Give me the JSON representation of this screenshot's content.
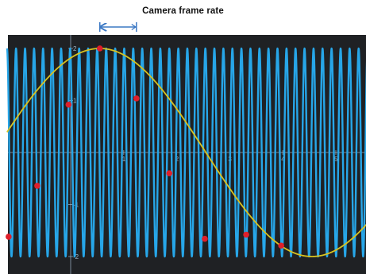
{
  "title": "Camera frame rate",
  "colors": {
    "background": "#1f2124",
    "fast_wave": "#27a6e8",
    "slow_wave": "#d8c21f",
    "sample_points": "#e01f2a",
    "bracket": "#3b78c4",
    "axis": "#9fb6c8"
  },
  "y_ticks": [
    "2",
    "1",
    "-1",
    "-2"
  ],
  "x_ticks": [
    "1",
    "2",
    "3",
    "4",
    "5"
  ],
  "chart_data": {
    "type": "line",
    "title": "",
    "xlabel": "",
    "ylabel": "",
    "xlim": [
      -1.2,
      5.6
    ],
    "ylim": [
      -2.1,
      2.1
    ],
    "grid": false,
    "series": [
      {
        "role": "fast wave (blue)",
        "function": "sine",
        "amplitude": 2,
        "cycles_visible": 40
      },
      {
        "role": "slow wave (yellow)",
        "function": "sine",
        "amplitude": 2,
        "peak_x": 0.55,
        "trough_x": 4.55
      }
    ],
    "sample_points": {
      "x": [
        -1.17,
        -0.63,
        -0.04,
        0.55,
        1.24,
        1.86,
        2.53,
        3.31,
        3.97
      ],
      "y": [
        -1.62,
        -0.64,
        0.92,
        2.0,
        1.04,
        -0.4,
        -1.66,
        -1.58,
        -1.79
      ]
    },
    "annotation": {
      "label": "Camera frame rate",
      "from_x": 0.55,
      "to_x": 1.24
    }
  }
}
